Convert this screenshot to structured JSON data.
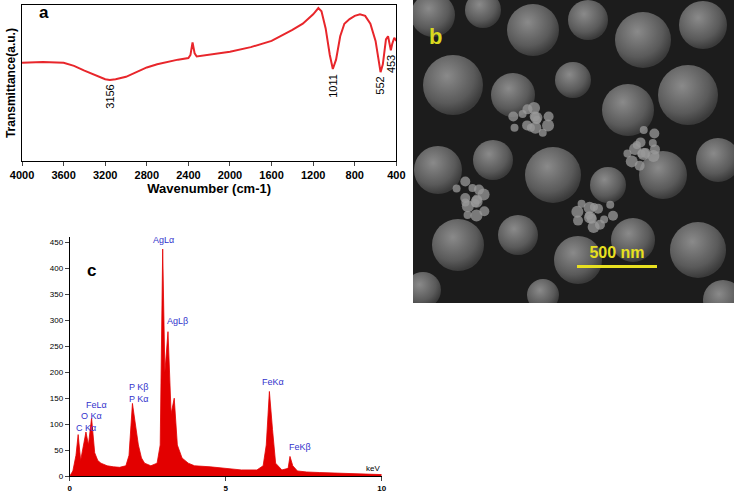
{
  "chart_data": [
    {
      "type": "line",
      "title": "a",
      "xlabel": "Wavenumber (cm-1)",
      "ylabel": "Transmittance(a.u.)",
      "x": [
        4000,
        3800,
        3600,
        3500,
        3400,
        3300,
        3200,
        3156,
        3100,
        3000,
        2900,
        2800,
        2700,
        2600,
        2500,
        2400,
        2380,
        2360,
        2340,
        2320,
        2200,
        2000,
        1800,
        1600,
        1400,
        1300,
        1200,
        1150,
        1120,
        1080,
        1040,
        1011,
        980,
        940,
        900,
        850,
        800,
        750,
        700,
        650,
        600,
        570,
        552,
        530,
        500,
        480,
        460,
        453,
        440,
        420,
        400
      ],
      "values": [
        63,
        63.5,
        63,
        61,
        58,
        55,
        52.5,
        52,
        52.5,
        54,
        57,
        60,
        62,
        63.5,
        65,
        66,
        68,
        76,
        69,
        67,
        68,
        70,
        73,
        77,
        84,
        88,
        94,
        98,
        96,
        85,
        68,
        59,
        65,
        80,
        88,
        91,
        93,
        94,
        93,
        88,
        77,
        64,
        57,
        62,
        78,
        80,
        74,
        71,
        75,
        79,
        77
      ],
      "color": "#e8262b",
      "xlim": [
        4000,
        400
      ],
      "xticks": [
        4000,
        3600,
        3200,
        2800,
        2400,
        2000,
        1600,
        1200,
        800,
        400
      ],
      "ylim": [
        0,
        100
      ],
      "tick_labels": "x",
      "grid": false,
      "annotations": [
        {
          "x": 3156,
          "y": 52,
          "text": "3156"
        },
        {
          "x": 1011,
          "y": 59,
          "text": "1011"
        },
        {
          "x": 552,
          "y": 57,
          "text": "552"
        },
        {
          "x": 453,
          "y": 71,
          "text": "453"
        }
      ]
    },
    {
      "type": "area",
      "title": "c",
      "xlabel": "keV",
      "x": [
        0,
        0.1,
        0.2,
        0.27,
        0.35,
        0.45,
        0.52,
        0.6,
        0.7,
        0.8,
        0.9,
        1.0,
        1.2,
        1.4,
        1.6,
        1.8,
        1.9,
        2.01,
        2.1,
        2.2,
        2.3,
        2.4,
        2.6,
        2.8,
        2.9,
        2.98,
        3.05,
        3.15,
        3.25,
        3.35,
        3.45,
        3.6,
        3.8,
        4.0,
        4.5,
        5.0,
        5.5,
        6.0,
        6.2,
        6.3,
        6.4,
        6.5,
        6.6,
        6.8,
        7.0,
        7.06,
        7.15,
        7.3,
        7.6,
        8.0,
        8.5,
        9.0,
        9.5,
        10.0
      ],
      "values": [
        0,
        10,
        40,
        80,
        30,
        60,
        85,
        60,
        112,
        45,
        30,
        25,
        20,
        18,
        17,
        20,
        40,
        140,
        100,
        60,
        35,
        25,
        20,
        25,
        60,
        437,
        200,
        278,
        120,
        150,
        60,
        35,
        25,
        20,
        18,
        15,
        12,
        12,
        20,
        60,
        163,
        90,
        25,
        12,
        15,
        38,
        20,
        10,
        8,
        7,
        6,
        5,
        4,
        3
      ],
      "color": "#e30000",
      "xlim": [
        0,
        10
      ],
      "xticks": [
        0,
        5,
        10
      ],
      "ylim": [
        0,
        460
      ],
      "yticks": [
        0,
        50,
        100,
        150,
        200,
        250,
        300,
        350,
        400,
        450
      ],
      "grid": false,
      "annotations": [
        {
          "x": 0.15,
          "y": 80,
          "text": "C Kα"
        },
        {
          "x": 0.3,
          "y": 102,
          "text": "O Kα"
        },
        {
          "x": 0.45,
          "y": 124,
          "text": "FeLα"
        },
        {
          "x": 1.85,
          "y": 158,
          "text": "P Kβ"
        },
        {
          "x": 1.85,
          "y": 135,
          "text": "P Kα"
        },
        {
          "x": 2.6,
          "y": 440,
          "text": "AgLα"
        },
        {
          "x": 3.05,
          "y": 285,
          "text": "AgLβ"
        },
        {
          "x": 6.1,
          "y": 168,
          "text": "FeKα"
        },
        {
          "x": 6.95,
          "y": 42,
          "text": "FeKβ"
        }
      ]
    }
  ],
  "image": {
    "label": "b",
    "scale_bar": "500 nm"
  }
}
